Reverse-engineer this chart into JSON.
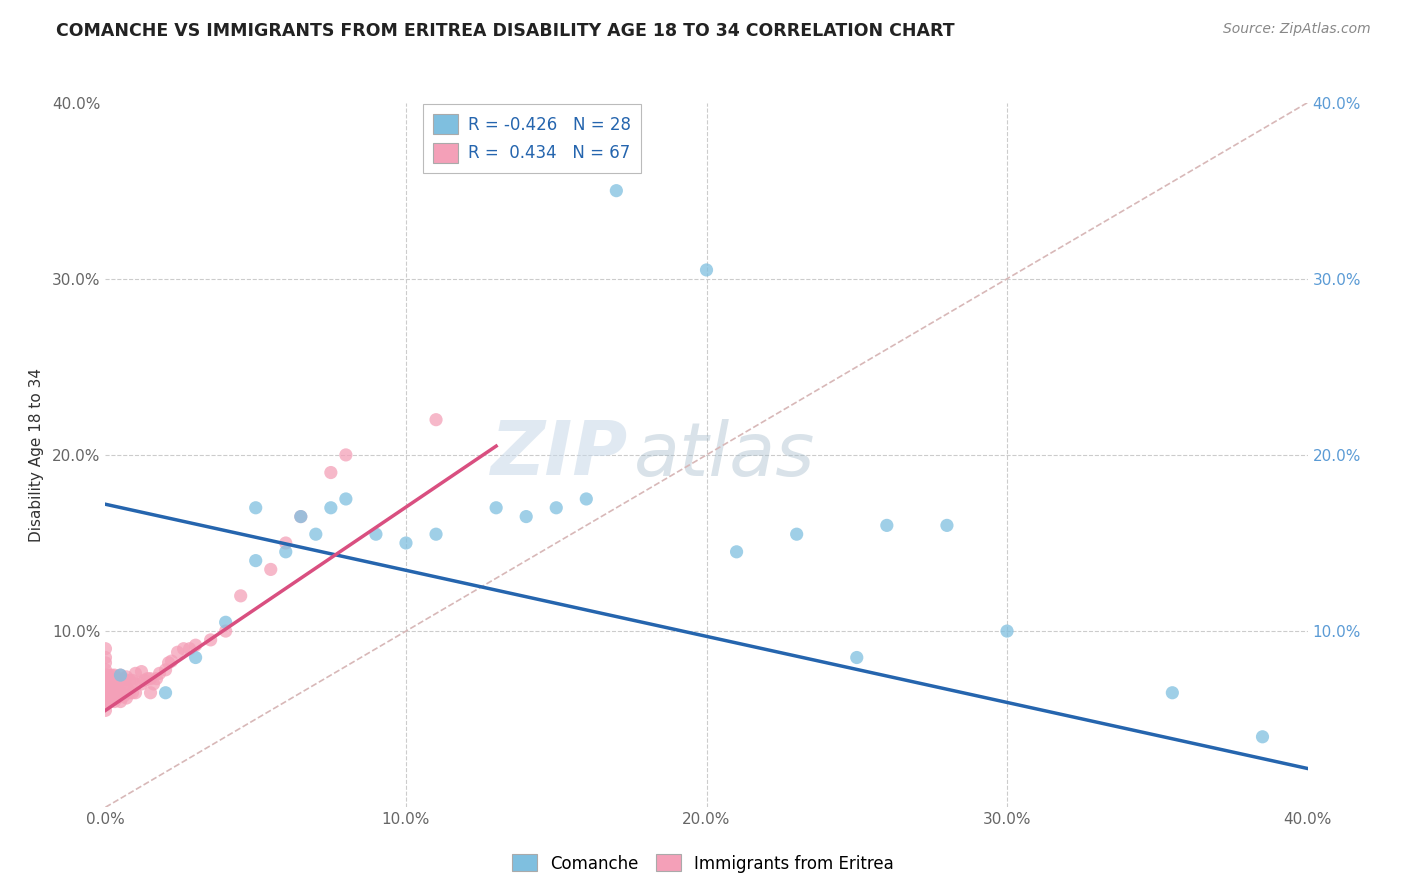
{
  "title": "COMANCHE VS IMMIGRANTS FROM ERITREA DISABILITY AGE 18 TO 34 CORRELATION CHART",
  "source": "Source: ZipAtlas.com",
  "ylabel": "Disability Age 18 to 34",
  "xlim": [
    0.0,
    0.4
  ],
  "ylim": [
    0.0,
    0.4
  ],
  "xtick_labels": [
    "0.0%",
    "10.0%",
    "20.0%",
    "30.0%",
    "40.0%"
  ],
  "xtick_vals": [
    0.0,
    0.1,
    0.2,
    0.3,
    0.4
  ],
  "ytick_labels": [
    "",
    "10.0%",
    "20.0%",
    "30.0%",
    "40.0%"
  ],
  "ytick_vals": [
    0.0,
    0.1,
    0.2,
    0.3,
    0.4
  ],
  "right_ytick_labels": [
    "10.0%",
    "20.0%",
    "30.0%",
    "40.0%"
  ],
  "right_ytick_vals": [
    0.1,
    0.2,
    0.3,
    0.4
  ],
  "comanche_R": -0.426,
  "comanche_N": 28,
  "eritrea_R": 0.434,
  "eritrea_N": 67,
  "comanche_color": "#7fbfdf",
  "eritrea_color": "#f4a0b8",
  "comanche_line_color": "#2565ae",
  "eritrea_line_color": "#d94f80",
  "diagonal_color": "#d8b8b8",
  "watermark_zip": "ZIP",
  "watermark_atlas": "atlas",
  "background_color": "#ffffff",
  "comanche_x": [
    0.005,
    0.02,
    0.03,
    0.04,
    0.05,
    0.05,
    0.06,
    0.065,
    0.07,
    0.075,
    0.08,
    0.09,
    0.1,
    0.11,
    0.13,
    0.14,
    0.15,
    0.16,
    0.17,
    0.2,
    0.21,
    0.23,
    0.25,
    0.26,
    0.28,
    0.3,
    0.355,
    0.385
  ],
  "comanche_y": [
    0.075,
    0.065,
    0.085,
    0.105,
    0.14,
    0.17,
    0.145,
    0.165,
    0.155,
    0.17,
    0.175,
    0.155,
    0.15,
    0.155,
    0.17,
    0.165,
    0.17,
    0.175,
    0.35,
    0.305,
    0.145,
    0.155,
    0.085,
    0.16,
    0.16,
    0.1,
    0.065,
    0.04
  ],
  "eritrea_x": [
    0.0,
    0.0,
    0.0,
    0.0,
    0.0,
    0.0,
    0.0,
    0.0,
    0.0,
    0.0,
    0.0,
    0.001,
    0.001,
    0.001,
    0.001,
    0.002,
    0.002,
    0.002,
    0.003,
    0.003,
    0.003,
    0.003,
    0.004,
    0.004,
    0.004,
    0.005,
    0.005,
    0.005,
    0.005,
    0.006,
    0.006,
    0.006,
    0.007,
    0.007,
    0.007,
    0.008,
    0.008,
    0.009,
    0.009,
    0.01,
    0.01,
    0.01,
    0.012,
    0.012,
    0.013,
    0.014,
    0.015,
    0.015,
    0.016,
    0.017,
    0.018,
    0.02,
    0.021,
    0.022,
    0.024,
    0.026,
    0.028,
    0.03,
    0.035,
    0.04,
    0.045,
    0.055,
    0.06,
    0.065,
    0.075,
    0.08,
    0.11
  ],
  "eritrea_y": [
    0.055,
    0.058,
    0.062,
    0.065,
    0.068,
    0.072,
    0.075,
    0.078,
    0.082,
    0.085,
    0.09,
    0.06,
    0.065,
    0.07,
    0.075,
    0.062,
    0.068,
    0.075,
    0.06,
    0.065,
    0.07,
    0.075,
    0.062,
    0.068,
    0.073,
    0.06,
    0.065,
    0.07,
    0.075,
    0.063,
    0.068,
    0.073,
    0.062,
    0.068,
    0.074,
    0.065,
    0.072,
    0.065,
    0.072,
    0.065,
    0.07,
    0.076,
    0.07,
    0.077,
    0.072,
    0.073,
    0.065,
    0.073,
    0.07,
    0.073,
    0.076,
    0.078,
    0.082,
    0.083,
    0.088,
    0.09,
    0.09,
    0.092,
    0.095,
    0.1,
    0.12,
    0.135,
    0.15,
    0.165,
    0.19,
    0.2,
    0.22
  ],
  "comanche_line_x": [
    0.0,
    0.4
  ],
  "comanche_line_y": [
    0.172,
    0.022
  ],
  "eritrea_line_x": [
    0.0,
    0.13
  ],
  "eritrea_line_y": [
    0.055,
    0.205
  ]
}
